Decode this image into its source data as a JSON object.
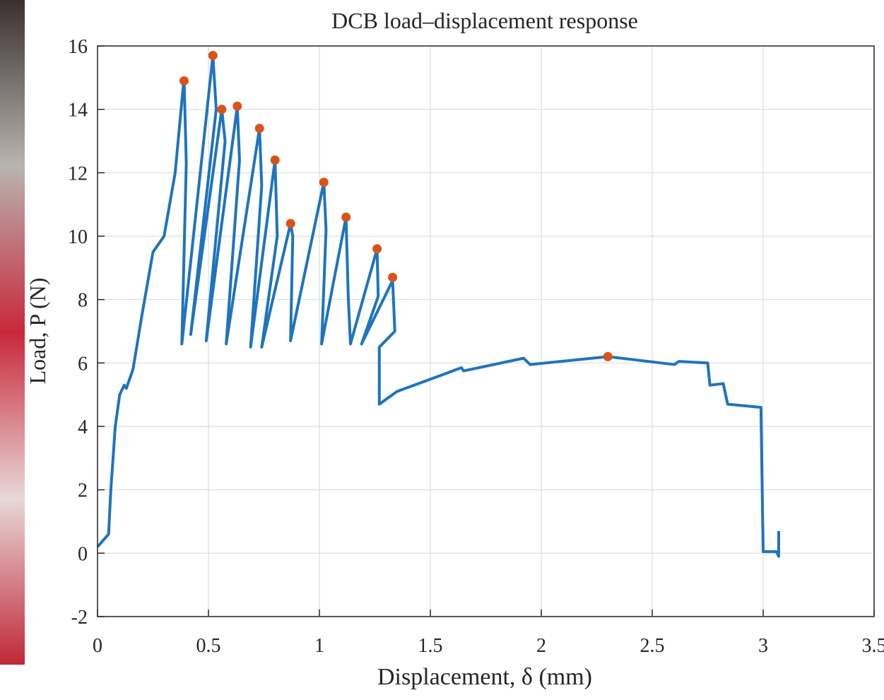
{
  "chart_data": {
    "type": "line",
    "title": "DCB load–displacement response",
    "xlabel": "Displacement, δ (mm)",
    "ylabel": "Load, P (N)",
    "xlim": [
      0,
      3.5
    ],
    "xticks": [
      0,
      0.5,
      1,
      1.5,
      2,
      2.5,
      3,
      3.5
    ],
    "ylim": [
      -2,
      16
    ],
    "yticks": [
      -2,
      0,
      2,
      4,
      6,
      8,
      10,
      12,
      14,
      16
    ],
    "grid": true,
    "series": [
      {
        "type": "line",
        "color": "#1f74bd",
        "x": [
          0,
          0.05,
          0.06,
          0.07,
          0.08,
          0.1,
          0.12,
          0.13,
          0.16,
          0.2,
          0.25,
          0.3,
          0.35,
          0.39,
          0.4,
          0.38,
          0.52,
          0.535,
          0.42,
          0.56,
          0.575,
          0.49,
          0.63,
          0.64,
          0.58,
          0.73,
          0.74,
          0.69,
          0.8,
          0.81,
          0.74,
          0.87,
          0.88,
          0.87,
          1.02,
          1.03,
          1.01,
          1.12,
          1.13,
          1.14,
          1.26,
          1.265,
          1.19,
          1.33,
          1.34,
          1.27,
          1.27,
          1.35,
          1.64,
          1.65,
          1.92,
          1.95,
          2.3,
          2.6,
          2.62,
          2.75,
          2.76,
          2.82,
          2.84,
          2.99,
          3.0,
          3.06,
          3.07,
          3.07
        ],
        "values": [
          0.2,
          0.6,
          2,
          3,
          4,
          5,
          5.3,
          5.2,
          5.8,
          7.5,
          9.5,
          10,
          12,
          15,
          12.3,
          6.6,
          15.7,
          14,
          6.9,
          14,
          13,
          6.7,
          14.1,
          12.4,
          6.6,
          13.4,
          11.6,
          6.5,
          12.4,
          10,
          6.5,
          10.4,
          10,
          6.7,
          11.7,
          10.2,
          6.6,
          10.6,
          8.1,
          6.6,
          9.6,
          8.1,
          6.6,
          8.6,
          7,
          6.5,
          4.7,
          5.1,
          5.85,
          5.75,
          6.15,
          5.95,
          6.2,
          5.95,
          6.05,
          6,
          5.3,
          5.35,
          4.7,
          4.6,
          0.05,
          0.05,
          -0.1,
          0.7
        ]
      },
      {
        "type": "scatter",
        "color": "#d95319",
        "x": [
          0.39,
          0.52,
          0.56,
          0.63,
          0.73,
          0.8,
          0.87,
          1.02,
          1.12,
          1.26,
          1.33,
          2.3
        ],
        "values": [
          14.9,
          15.7,
          14.0,
          14.1,
          13.4,
          12.4,
          10.4,
          11.7,
          10.6,
          9.6,
          8.7,
          6.2
        ]
      }
    ]
  }
}
